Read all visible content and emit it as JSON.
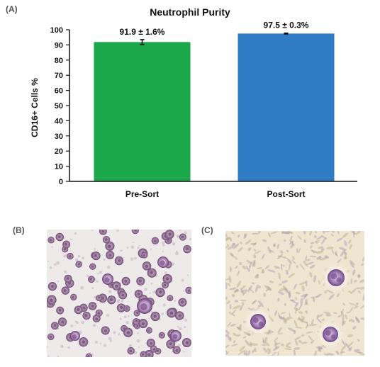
{
  "panels": {
    "a": "(A)",
    "b": "(B)",
    "c": "(C)"
  },
  "colors": {
    "pre_sort": "#1aa84b",
    "post_sort": "#2f7bc4",
    "axis": "#111111",
    "error_bar": "#111111"
  },
  "chart_data": {
    "type": "bar",
    "title": "Neutrophil Purity",
    "xlabel": "",
    "ylabel": "CD16+ Cells %",
    "ylim": [
      0,
      100
    ],
    "yticks": [
      0,
      10,
      20,
      30,
      40,
      50,
      60,
      70,
      80,
      90,
      100
    ],
    "categories": [
      "Pre-Sort",
      "Post-Sort"
    ],
    "values": [
      91.9,
      97.5
    ],
    "errors": [
      1.6,
      0.3
    ],
    "data_labels": [
      "91.9 ± 1.6%",
      "97.5 ± 0.3%"
    ],
    "grid": false,
    "legend": "none"
  },
  "images": [
    {
      "panel": "B",
      "icon": "micrograph-pre-sort-cells"
    },
    {
      "panel": "C",
      "icon": "micrograph-post-sort-cells"
    }
  ]
}
